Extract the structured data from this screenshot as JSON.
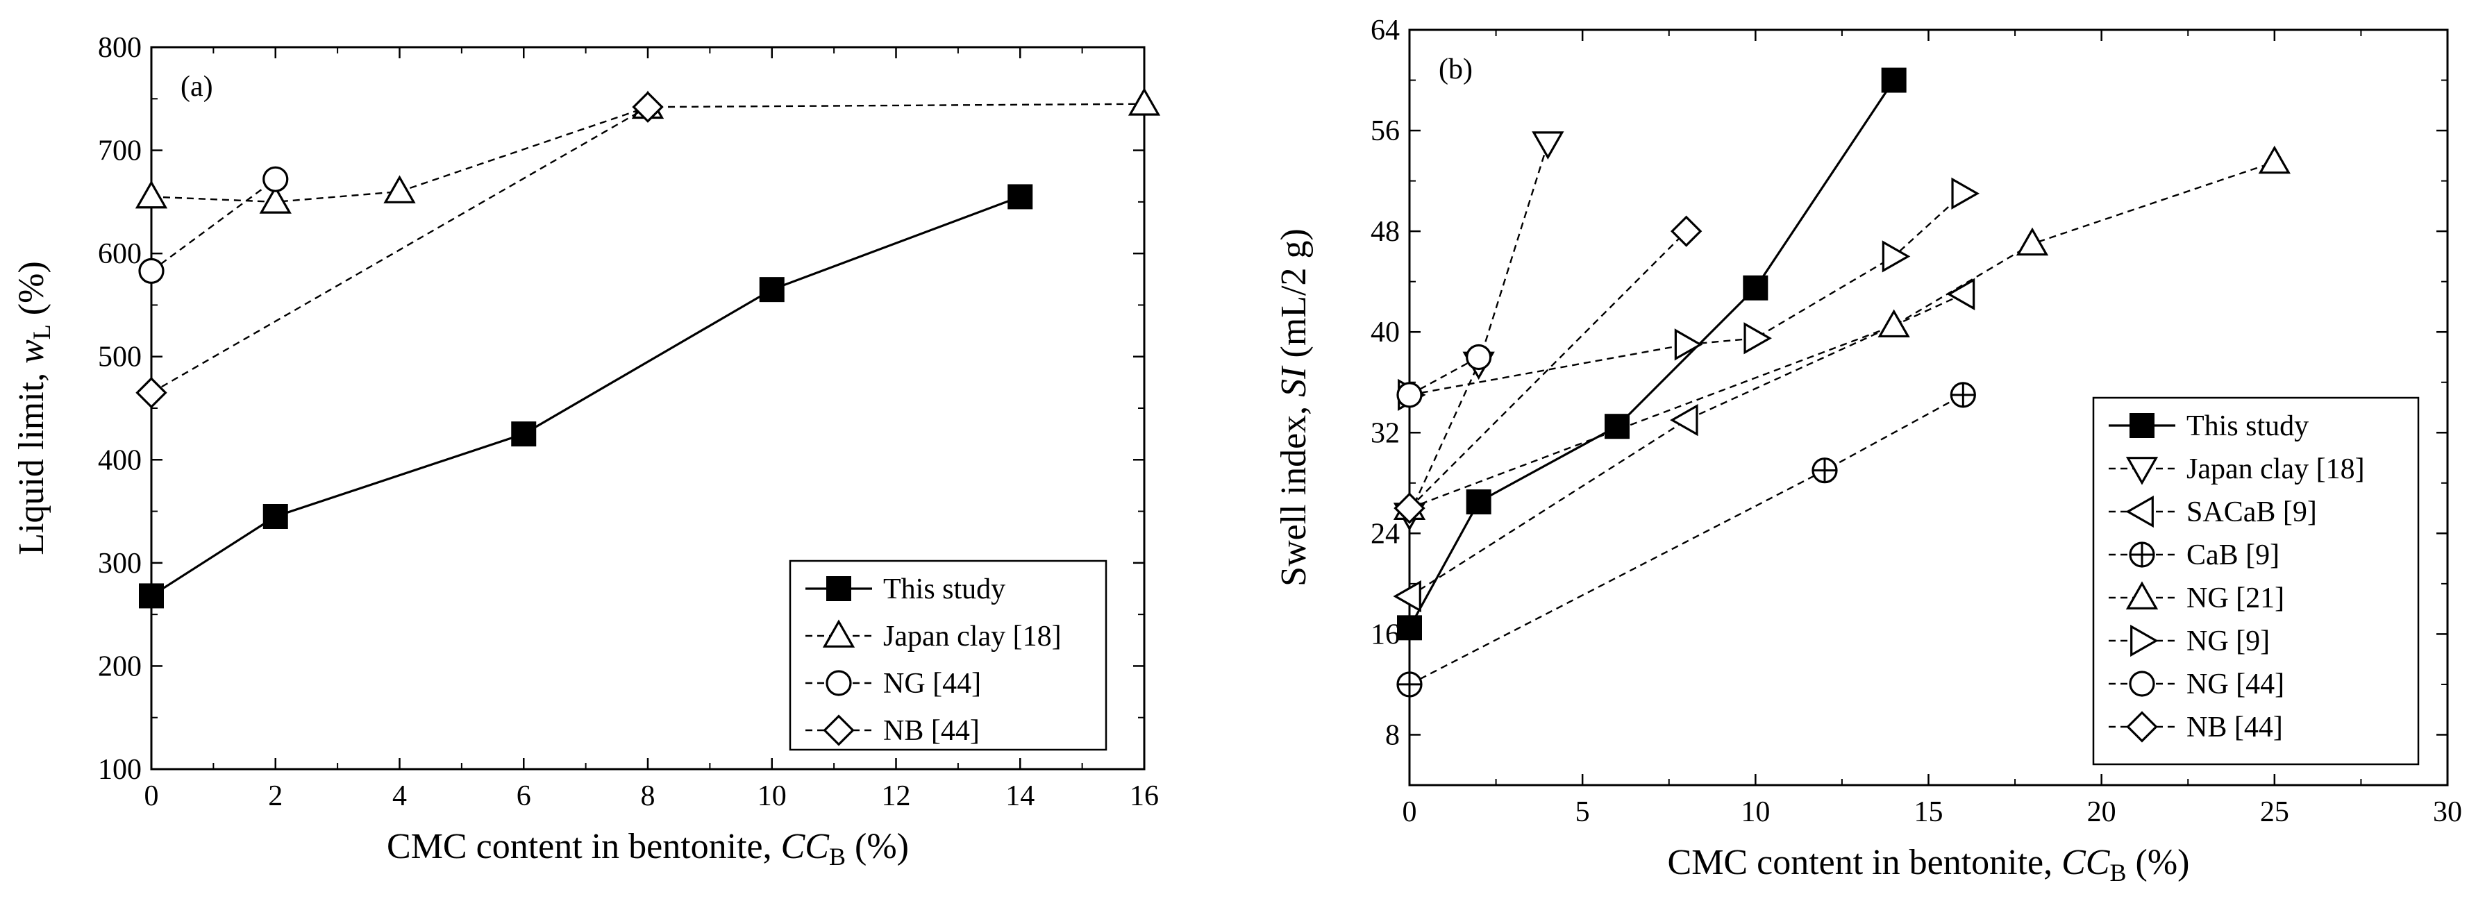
{
  "chart_data": [
    {
      "type": "line",
      "panel_label": "(a)",
      "xlabel": {
        "main": "CMC content in bentonite, ",
        "var": "CC",
        "sub": "B",
        "unit": " (%)"
      },
      "ylabel": {
        "main": "Liquid limit, ",
        "var": "w",
        "sub": "L",
        "unit": " (%)"
      },
      "xlim": [
        0,
        16
      ],
      "ylim": [
        100,
        800
      ],
      "xticks": [
        0,
        2,
        4,
        6,
        8,
        10,
        12,
        14,
        16
      ],
      "yticks": [
        100,
        200,
        300,
        400,
        500,
        600,
        700,
        800
      ],
      "legend_position": "bottom-right",
      "series": [
        {
          "name": "This study",
          "marker": "filled-square",
          "line": "solid",
          "x": [
            0,
            2,
            6,
            10,
            14
          ],
          "y": [
            268,
            345,
            425,
            565,
            655
          ]
        },
        {
          "name": "Japan clay [18]",
          "marker": "triangle-up",
          "line": "dashed",
          "x": [
            0,
            2,
            4,
            8,
            16
          ],
          "y": [
            655,
            650,
            660,
            742,
            745
          ]
        },
        {
          "name": "NG [44]",
          "marker": "circle",
          "line": "dashed",
          "x": [
            0,
            2
          ],
          "y": [
            583,
            672
          ]
        },
        {
          "name": "NB [44]",
          "marker": "diamond",
          "line": "dashed",
          "x": [
            0,
            8
          ],
          "y": [
            465,
            742
          ]
        }
      ]
    },
    {
      "type": "line",
      "panel_label": "(b)",
      "xlabel": {
        "main": "CMC content in bentonite, ",
        "var": "CC",
        "sub": "B",
        "unit": " (%)"
      },
      "ylabel": {
        "main": "Swell index, ",
        "var": "SI",
        "sub": "",
        "unit": " (mL/2 g)"
      },
      "xlim": [
        0,
        30
      ],
      "ylim": [
        4,
        64
      ],
      "xticks": [
        0,
        5,
        10,
        15,
        20,
        25,
        30
      ],
      "yticks": [
        8,
        16,
        24,
        32,
        40,
        48,
        56,
        64
      ],
      "legend_position": "bottom-right",
      "series": [
        {
          "name": "This study",
          "marker": "filled-square",
          "line": "solid",
          "x": [
            0,
            2,
            6,
            10,
            14
          ],
          "y": [
            16.5,
            26.5,
            32.5,
            43.5,
            60
          ]
        },
        {
          "name": "Japan clay [18]",
          "marker": "triangle-down",
          "line": "dashed",
          "x": [
            0,
            2,
            4
          ],
          "y": [
            25.5,
            37.5,
            55
          ]
        },
        {
          "name": "SACaB [9]",
          "marker": "triangle-left",
          "line": "dashed",
          "x": [
            0,
            8,
            16
          ],
          "y": [
            19,
            33,
            43
          ]
        },
        {
          "name": "CaB [9]",
          "marker": "circle-plus",
          "line": "dashed",
          "x": [
            0,
            12,
            16
          ],
          "y": [
            12,
            29,
            35
          ]
        },
        {
          "name": "NG [21]",
          "marker": "triangle-up",
          "line": "dashed",
          "x": [
            0,
            14,
            18,
            25
          ],
          "y": [
            26,
            40.5,
            47,
            53.5
          ]
        },
        {
          "name": "NG [9]",
          "marker": "triangle-right",
          "line": "dashed",
          "x": [
            0,
            8,
            10,
            14,
            16
          ],
          "y": [
            35,
            39,
            39.5,
            46,
            51
          ]
        },
        {
          "name": "NG [44]",
          "marker": "circle",
          "line": "dashed",
          "x": [
            0,
            2
          ],
          "y": [
            35,
            38
          ]
        },
        {
          "name": "NB [44]",
          "marker": "diamond",
          "line": "dashed",
          "x": [
            0,
            8
          ],
          "y": [
            26,
            48
          ]
        }
      ]
    }
  ]
}
